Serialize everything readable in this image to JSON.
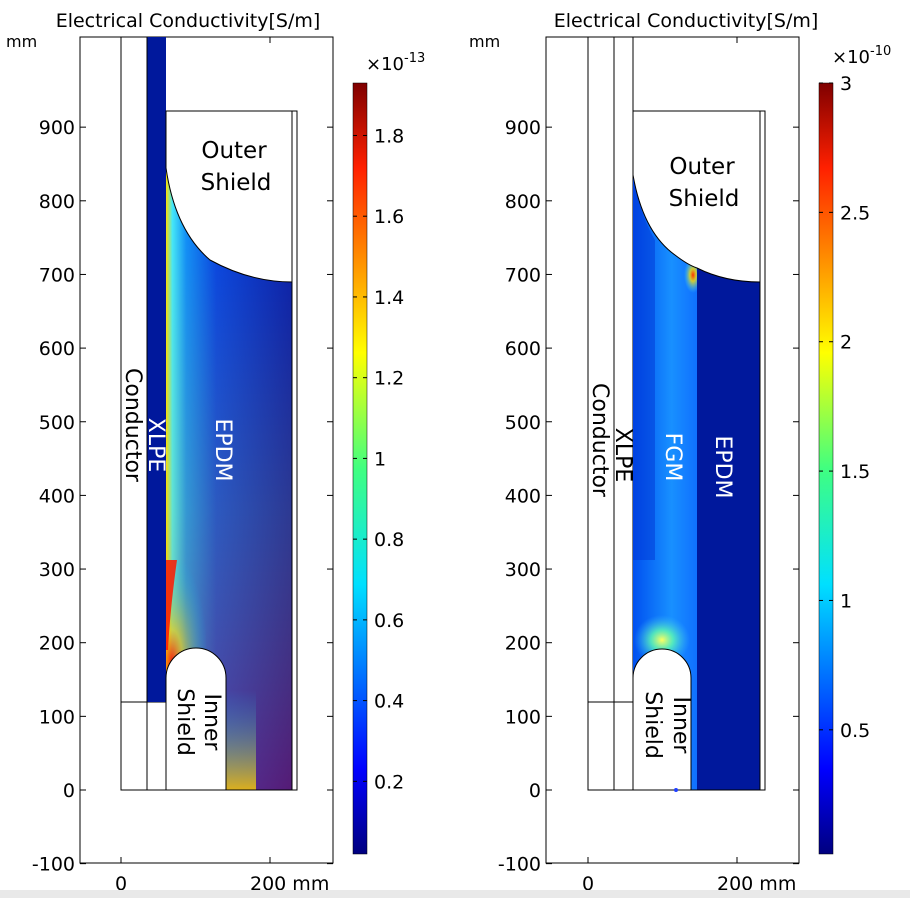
{
  "chart_data": [
    {
      "type": "heatmap",
      "title": "Electrical Conductivity[S/m]",
      "unit_label": "mm",
      "xaxis": {
        "ticks": [
          0,
          200
        ],
        "tick_labels": [
          "0",
          "200 mm"
        ],
        "range": [
          -55,
          285
        ]
      },
      "yaxis": {
        "ticks": [
          -100,
          0,
          100,
          200,
          300,
          400,
          500,
          600,
          700,
          800,
          900
        ],
        "tick_labels": [
          "-100",
          "0",
          "100",
          "200",
          "300",
          "400",
          "500",
          "600",
          "700",
          "800",
          "900"
        ],
        "range": [
          -100,
          1020
        ]
      },
      "colorbar": {
        "multiplier": "×10",
        "exponent": "-13",
        "range": [
          0.02,
          1.93
        ],
        "ticks": [
          0.2,
          0.4,
          0.6,
          0.8,
          1,
          1.2,
          1.4,
          1.6,
          1.8
        ],
        "tick_labels": [
          "0.2",
          "0.4",
          "0.6",
          "0.8",
          "1",
          "1.2",
          "1.4",
          "1.6",
          "1.8"
        ],
        "colormap": "rainbow"
      },
      "regions": {
        "conductor": "Conductor",
        "xlpe": "XLPE",
        "grading": "EPDM",
        "outer_shield": [
          "Outer",
          "Shield"
        ],
        "inner_shield": [
          "Inner",
          "Shield"
        ]
      }
    },
    {
      "type": "heatmap",
      "title": "Electrical Conductivity[S/m]",
      "unit_label": "mm",
      "xaxis": {
        "ticks": [
          0,
          200
        ],
        "tick_labels": [
          "0",
          "200 mm"
        ],
        "range": [
          -55,
          285
        ]
      },
      "yaxis": {
        "ticks": [
          -100,
          0,
          100,
          200,
          300,
          400,
          500,
          600,
          700,
          800,
          900
        ],
        "tick_labels": [
          "-100",
          "0",
          "100",
          "200",
          "300",
          "400",
          "500",
          "600",
          "700",
          "800",
          "900"
        ],
        "range": [
          -100,
          1020
        ]
      },
      "colorbar": {
        "multiplier": "×10",
        "exponent": "-10",
        "range": [
          0.02,
          3
        ],
        "ticks": [
          0.5,
          1,
          1.5,
          2,
          2.5,
          3
        ],
        "tick_labels": [
          "0.5",
          "1",
          "1.5",
          "2",
          "2.5",
          "3"
        ],
        "colormap": "rainbow"
      },
      "regions": {
        "conductor": "Conductor",
        "xlpe": "XLPE",
        "grading": "FGM",
        "epdm": "EPDM",
        "outer_shield": [
          "Outer",
          "Shield"
        ],
        "inner_shield": [
          "Inner",
          "Shield"
        ]
      }
    }
  ]
}
